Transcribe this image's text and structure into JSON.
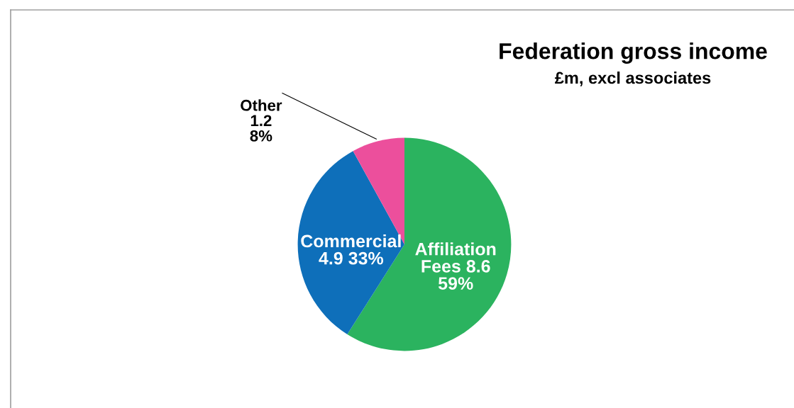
{
  "chart_data": {
    "type": "pie",
    "title": "Federation gross income",
    "subtitle": "£m, excl associates",
    "categories": [
      "Affiliation Fees",
      "Commercial",
      "Other"
    ],
    "values": [
      59,
      33,
      8
    ],
    "colors": [
      "#2bb35f",
      "#0e6fba",
      "#ec4f9c"
    ],
    "value_labels": [
      "8.6 59%",
      "4.9 33%",
      "1.2 8%"
    ],
    "legend": false
  }
}
